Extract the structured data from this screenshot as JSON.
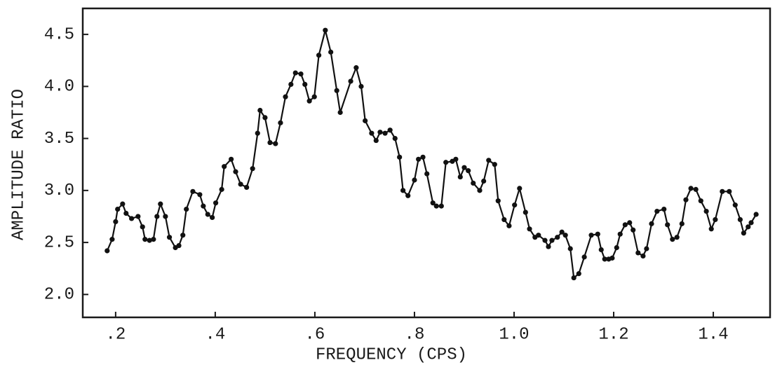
{
  "chart_data": {
    "type": "line",
    "xlabel": "FREQUENCY (CPS)",
    "ylabel": "AMPLITUDE RATIO",
    "color": "#111111",
    "markers": true,
    "grid": false,
    "xlim": [
      0.134,
      1.514
    ],
    "ylim": [
      1.78,
      4.75
    ],
    "xticks": [
      {
        "value": 0.2,
        "label": ".2"
      },
      {
        "value": 0.4,
        "label": ".4"
      },
      {
        "value": 0.6,
        "label": ".6"
      },
      {
        "value": 0.8,
        "label": ".8"
      },
      {
        "value": 1.0,
        "label": "1.0"
      },
      {
        "value": 1.2,
        "label": "1.2"
      },
      {
        "value": 1.4,
        "label": "1.4"
      }
    ],
    "yticks": [
      {
        "value": 2,
        "label": "2.0"
      },
      2.5,
      {
        "value": 3,
        "label": "3.0"
      },
      3.5,
      {
        "value": 4,
        "label": "4.0"
      },
      4.5
    ],
    "x": [
      0.183,
      0.193,
      0.2,
      0.204,
      0.214,
      0.221,
      0.232,
      0.245,
      0.254,
      0.259,
      0.268,
      0.276,
      0.283,
      0.29,
      0.3,
      0.308,
      0.32,
      0.327,
      0.335,
      0.342,
      0.355,
      0.369,
      0.376,
      0.385,
      0.394,
      0.401,
      0.413,
      0.418,
      0.432,
      0.441,
      0.451,
      0.463,
      0.475,
      0.485,
      0.49,
      0.5,
      0.51,
      0.521,
      0.531,
      0.541,
      0.552,
      0.561,
      0.572,
      0.58,
      0.589,
      0.599,
      0.608,
      0.621,
      0.632,
      0.644,
      0.651,
      0.672,
      0.683,
      0.693,
      0.701,
      0.714,
      0.723,
      0.731,
      0.741,
      0.751,
      0.761,
      0.77,
      0.777,
      0.787,
      0.8,
      0.808,
      0.817,
      0.825,
      0.837,
      0.844,
      0.854,
      0.863,
      0.876,
      0.883,
      0.892,
      0.9,
      0.908,
      0.918,
      0.931,
      0.939,
      0.949,
      0.961,
      0.968,
      0.98,
      0.99,
      1.001,
      1.011,
      1.023,
      1.031,
      1.042,
      1.049,
      1.062,
      1.069,
      1.076,
      1.087,
      1.096,
      1.103,
      1.113,
      1.12,
      1.13,
      1.141,
      1.155,
      1.168,
      1.175,
      1.182,
      1.19,
      1.197,
      1.206,
      1.213,
      1.223,
      1.232,
      1.239,
      1.249,
      1.259,
      1.266,
      1.276,
      1.287,
      1.301,
      1.308,
      1.318,
      1.327,
      1.337,
      1.345,
      1.355,
      1.365,
      1.375,
      1.386,
      1.396,
      1.404,
      1.418,
      1.432,
      1.444,
      1.454,
      1.461,
      1.47,
      1.476,
      1.486
    ],
    "values": [
      2.42,
      2.53,
      2.7,
      2.82,
      2.87,
      2.78,
      2.73,
      2.75,
      2.65,
      2.53,
      2.52,
      2.53,
      2.75,
      2.87,
      2.75,
      2.55,
      2.45,
      2.47,
      2.57,
      2.82,
      2.99,
      2.96,
      2.85,
      2.77,
      2.74,
      2.88,
      3.01,
      3.23,
      3.3,
      3.18,
      3.06,
      3.03,
      3.21,
      3.55,
      3.77,
      3.7,
      3.46,
      3.45,
      3.65,
      3.9,
      4.02,
      4.13,
      4.12,
      4.02,
      3.86,
      3.9,
      4.3,
      4.54,
      4.33,
      3.96,
      3.75,
      4.05,
      4.18,
      4.0,
      3.67,
      3.55,
      3.48,
      3.56,
      3.55,
      3.58,
      3.5,
      3.32,
      3.0,
      2.95,
      3.1,
      3.3,
      3.32,
      3.16,
      2.88,
      2.85,
      2.85,
      3.27,
      3.28,
      3.3,
      3.13,
      3.22,
      3.19,
      3.07,
      3.0,
      3.09,
      3.29,
      3.25,
      2.9,
      2.72,
      2.66,
      2.86,
      3.02,
      2.79,
      2.63,
      2.55,
      2.57,
      2.52,
      2.46,
      2.52,
      2.55,
      2.6,
      2.57,
      2.44,
      2.16,
      2.2,
      2.36,
      2.57,
      2.58,
      2.43,
      2.34,
      2.34,
      2.35,
      2.45,
      2.58,
      2.67,
      2.69,
      2.62,
      2.4,
      2.37,
      2.44,
      2.68,
      2.8,
      2.82,
      2.67,
      2.53,
      2.55,
      2.68,
      2.91,
      3.02,
      3.01,
      2.9,
      2.8,
      2.63,
      2.72,
      2.99,
      2.99,
      2.86,
      2.72,
      2.59,
      2.65,
      2.69,
      2.77
    ]
  }
}
